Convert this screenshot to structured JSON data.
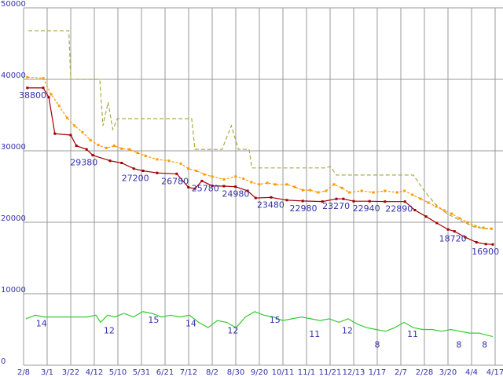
{
  "colors": {
    "grid": "#999999",
    "axis_label": "#3333aa",
    "data_label": "#3333aa",
    "min_price": "#a00000",
    "avg_price": "#ff9900",
    "max_price": "#aaaa44",
    "shop_count": "#33cc33",
    "background": "#ffffff"
  },
  "chart_data": {
    "type": "line",
    "title": "",
    "xlabel": "",
    "ylabel": "",
    "ylim": [
      0,
      50000
    ],
    "y_ticks": [
      0,
      10000,
      20000,
      30000,
      40000,
      50000
    ],
    "y_tick_labels": [
      "0",
      "10000",
      "20000",
      "30000",
      "40000",
      "50000"
    ],
    "x_tick_labels": [
      "2/8",
      "3/1",
      "3/22",
      "4/12",
      "5/10",
      "5/31",
      "6/21",
      "7/12",
      "8/2",
      "8/30",
      "9/20",
      "10/11",
      "11/1",
      "11/21",
      "12/13",
      "1/17",
      "2/7",
      "2/28",
      "3/20",
      "4/4",
      "4/17"
    ],
    "grid": true,
    "legend": false,
    "secondary_scale_note": "shop_count series plotted at value x 500 on main axis",
    "series": [
      {
        "name": "max_price",
        "style": "dashed",
        "marker": false,
        "dash": "5,3",
        "scale": 1,
        "points": [
          [
            0.005,
            46800
          ],
          [
            0.092,
            46800
          ],
          [
            0.096,
            40000
          ],
          [
            0.158,
            40000
          ],
          [
            0.165,
            33500
          ],
          [
            0.176,
            36800
          ],
          [
            0.186,
            33000
          ],
          [
            0.196,
            34500
          ],
          [
            0.355,
            34500
          ],
          [
            0.362,
            30200
          ],
          [
            0.42,
            30200
          ],
          [
            0.44,
            33500
          ],
          [
            0.455,
            30200
          ],
          [
            0.478,
            30200
          ],
          [
            0.484,
            27600
          ],
          [
            0.64,
            27600
          ],
          [
            0.652,
            27800
          ],
          [
            0.665,
            26600
          ],
          [
            0.83,
            26600
          ],
          [
            0.852,
            24500
          ],
          [
            0.876,
            22600
          ],
          [
            0.902,
            21200
          ],
          [
            0.932,
            20200
          ],
          [
            0.962,
            19300
          ],
          [
            1.0,
            19000
          ]
        ]
      },
      {
        "name": "avg_price",
        "style": "dashed",
        "marker": true,
        "dash": "3,2",
        "scale": 1,
        "points": [
          [
            0.003,
            40300
          ],
          [
            0.037,
            40150
          ],
          [
            0.054,
            37900
          ],
          [
            0.071,
            36300
          ],
          [
            0.088,
            34600
          ],
          [
            0.104,
            33500
          ],
          [
            0.121,
            32600
          ],
          [
            0.138,
            31500
          ],
          [
            0.155,
            30800
          ],
          [
            0.172,
            30400
          ],
          [
            0.189,
            30700
          ],
          [
            0.205,
            30300
          ],
          [
            0.222,
            30200
          ],
          [
            0.239,
            29700
          ],
          [
            0.256,
            29300
          ],
          [
            0.281,
            28800
          ],
          [
            0.306,
            28600
          ],
          [
            0.332,
            28200
          ],
          [
            0.348,
            27500
          ],
          [
            0.365,
            27200
          ],
          [
            0.382,
            26700
          ],
          [
            0.399,
            26400
          ],
          [
            0.424,
            26000
          ],
          [
            0.449,
            26400
          ],
          [
            0.466,
            26100
          ],
          [
            0.483,
            25600
          ],
          [
            0.5,
            25300
          ],
          [
            0.517,
            25500
          ],
          [
            0.534,
            25300
          ],
          [
            0.559,
            25300
          ],
          [
            0.576,
            24950
          ],
          [
            0.593,
            24500
          ],
          [
            0.609,
            24500
          ],
          [
            0.626,
            24180
          ],
          [
            0.643,
            24400
          ],
          [
            0.66,
            25300
          ],
          [
            0.677,
            24800
          ],
          [
            0.693,
            24180
          ],
          [
            0.719,
            24400
          ],
          [
            0.744,
            24180
          ],
          [
            0.769,
            24400
          ],
          [
            0.795,
            24180
          ],
          [
            0.811,
            24400
          ],
          [
            0.828,
            23850
          ],
          [
            0.845,
            23300
          ],
          [
            0.862,
            22750
          ],
          [
            0.879,
            22200
          ],
          [
            0.896,
            21650
          ],
          [
            0.912,
            21200
          ],
          [
            0.929,
            20550
          ],
          [
            0.946,
            20000
          ],
          [
            0.963,
            19450
          ],
          [
            0.98,
            19230
          ],
          [
            0.997,
            19100
          ]
        ]
      },
      {
        "name": "min_price",
        "style": "solid",
        "marker": true,
        "dash": "",
        "scale": 1,
        "points": [
          [
            0.003,
            38800
          ],
          [
            0.037,
            38800
          ],
          [
            0.049,
            37500
          ],
          [
            0.062,
            32400
          ],
          [
            0.096,
            32200
          ],
          [
            0.108,
            30700
          ],
          [
            0.13,
            30200
          ],
          [
            0.143,
            29380
          ],
          [
            0.18,
            28600
          ],
          [
            0.205,
            28300
          ],
          [
            0.231,
            27500
          ],
          [
            0.251,
            27200
          ],
          [
            0.281,
            26900
          ],
          [
            0.323,
            26780
          ],
          [
            0.348,
            24900
          ],
          [
            0.362,
            24700
          ],
          [
            0.377,
            25780
          ],
          [
            0.399,
            25100
          ],
          [
            0.424,
            25050
          ],
          [
            0.449,
            24980
          ],
          [
            0.475,
            24400
          ],
          [
            0.492,
            23400
          ],
          [
            0.525,
            23480
          ],
          [
            0.559,
            23100
          ],
          [
            0.593,
            22980
          ],
          [
            0.635,
            22900
          ],
          [
            0.665,
            23270
          ],
          [
            0.68,
            23270
          ],
          [
            0.702,
            22940
          ],
          [
            0.736,
            22940
          ],
          [
            0.769,
            22890
          ],
          [
            0.812,
            22890
          ],
          [
            0.833,
            21700
          ],
          [
            0.857,
            20800
          ],
          [
            0.88,
            19900
          ],
          [
            0.904,
            19000
          ],
          [
            0.918,
            18720
          ],
          [
            0.941,
            17900
          ],
          [
            0.965,
            17200
          ],
          [
            0.985,
            16950
          ],
          [
            1.0,
            16900
          ]
        ]
      },
      {
        "name": "shop_count",
        "style": "solid",
        "marker": false,
        "dash": "",
        "scale": 500,
        "points": [
          [
            0.0,
            13
          ],
          [
            0.02,
            14
          ],
          [
            0.04,
            13.5
          ],
          [
            0.07,
            13.5
          ],
          [
            0.1,
            13.5
          ],
          [
            0.13,
            13.5
          ],
          [
            0.15,
            14
          ],
          [
            0.16,
            12
          ],
          [
            0.175,
            14
          ],
          [
            0.19,
            13.5
          ],
          [
            0.21,
            14.5
          ],
          [
            0.23,
            13.5
          ],
          [
            0.25,
            15
          ],
          [
            0.27,
            14.5
          ],
          [
            0.29,
            13.5
          ],
          [
            0.31,
            14
          ],
          [
            0.33,
            13.5
          ],
          [
            0.35,
            14
          ],
          [
            0.37,
            12
          ],
          [
            0.39,
            10.5
          ],
          [
            0.41,
            12.5
          ],
          [
            0.43,
            12
          ],
          [
            0.45,
            10.5
          ],
          [
            0.47,
            13.5
          ],
          [
            0.49,
            15
          ],
          [
            0.51,
            14
          ],
          [
            0.53,
            13.5
          ],
          [
            0.55,
            12.5
          ],
          [
            0.57,
            13
          ],
          [
            0.59,
            13.5
          ],
          [
            0.61,
            13
          ],
          [
            0.63,
            12.5
          ],
          [
            0.65,
            13
          ],
          [
            0.67,
            12
          ],
          [
            0.69,
            13
          ],
          [
            0.71,
            11.5
          ],
          [
            0.73,
            10.5
          ],
          [
            0.75,
            10
          ],
          [
            0.77,
            9.5
          ],
          [
            0.79,
            10.5
          ],
          [
            0.81,
            12
          ],
          [
            0.83,
            10.5
          ],
          [
            0.85,
            10
          ],
          [
            0.87,
            10
          ],
          [
            0.89,
            9.5
          ],
          [
            0.91,
            10
          ],
          [
            0.93,
            9.5
          ],
          [
            0.95,
            9
          ],
          [
            0.97,
            9
          ],
          [
            1.0,
            8
          ]
        ]
      }
    ],
    "price_labels": [
      {
        "x": 0.005,
        "v": 38800,
        "text": "38800"
      },
      {
        "x": 0.115,
        "v": 29380,
        "text": "29380"
      },
      {
        "x": 0.225,
        "v": 27200,
        "text": "27200"
      },
      {
        "x": 0.31,
        "v": 26780,
        "text": "26780"
      },
      {
        "x": 0.375,
        "v": 25780,
        "text": "25780"
      },
      {
        "x": 0.44,
        "v": 24980,
        "text": "24980"
      },
      {
        "x": 0.515,
        "v": 23480,
        "text": "23480"
      },
      {
        "x": 0.585,
        "v": 22980,
        "text": "22980"
      },
      {
        "x": 0.655,
        "v": 23270,
        "text": "23270"
      },
      {
        "x": 0.72,
        "v": 22940,
        "text": "22940"
      },
      {
        "x": 0.79,
        "v": 22890,
        "text": "22890"
      },
      {
        "x": 0.905,
        "v": 18720,
        "text": "18720"
      },
      {
        "x": 0.975,
        "v": 16900,
        "text": "16900"
      }
    ],
    "count_labels": [
      {
        "x": 0.03,
        "v": 14,
        "text": "14"
      },
      {
        "x": 0.175,
        "v": 12,
        "text": "12"
      },
      {
        "x": 0.27,
        "v": 15,
        "text": "15"
      },
      {
        "x": 0.35,
        "v": 14,
        "text": "14"
      },
      {
        "x": 0.44,
        "v": 12,
        "text": "12"
      },
      {
        "x": 0.53,
        "v": 15,
        "text": "15"
      },
      {
        "x": 0.615,
        "v": 11,
        "text": "11"
      },
      {
        "x": 0.685,
        "v": 12,
        "text": "12"
      },
      {
        "x": 0.755,
        "v": 8,
        "text": "8"
      },
      {
        "x": 0.825,
        "v": 11,
        "text": "11"
      },
      {
        "x": 0.93,
        "v": 8,
        "text": "8"
      },
      {
        "x": 0.985,
        "v": 8,
        "text": "8"
      }
    ]
  }
}
